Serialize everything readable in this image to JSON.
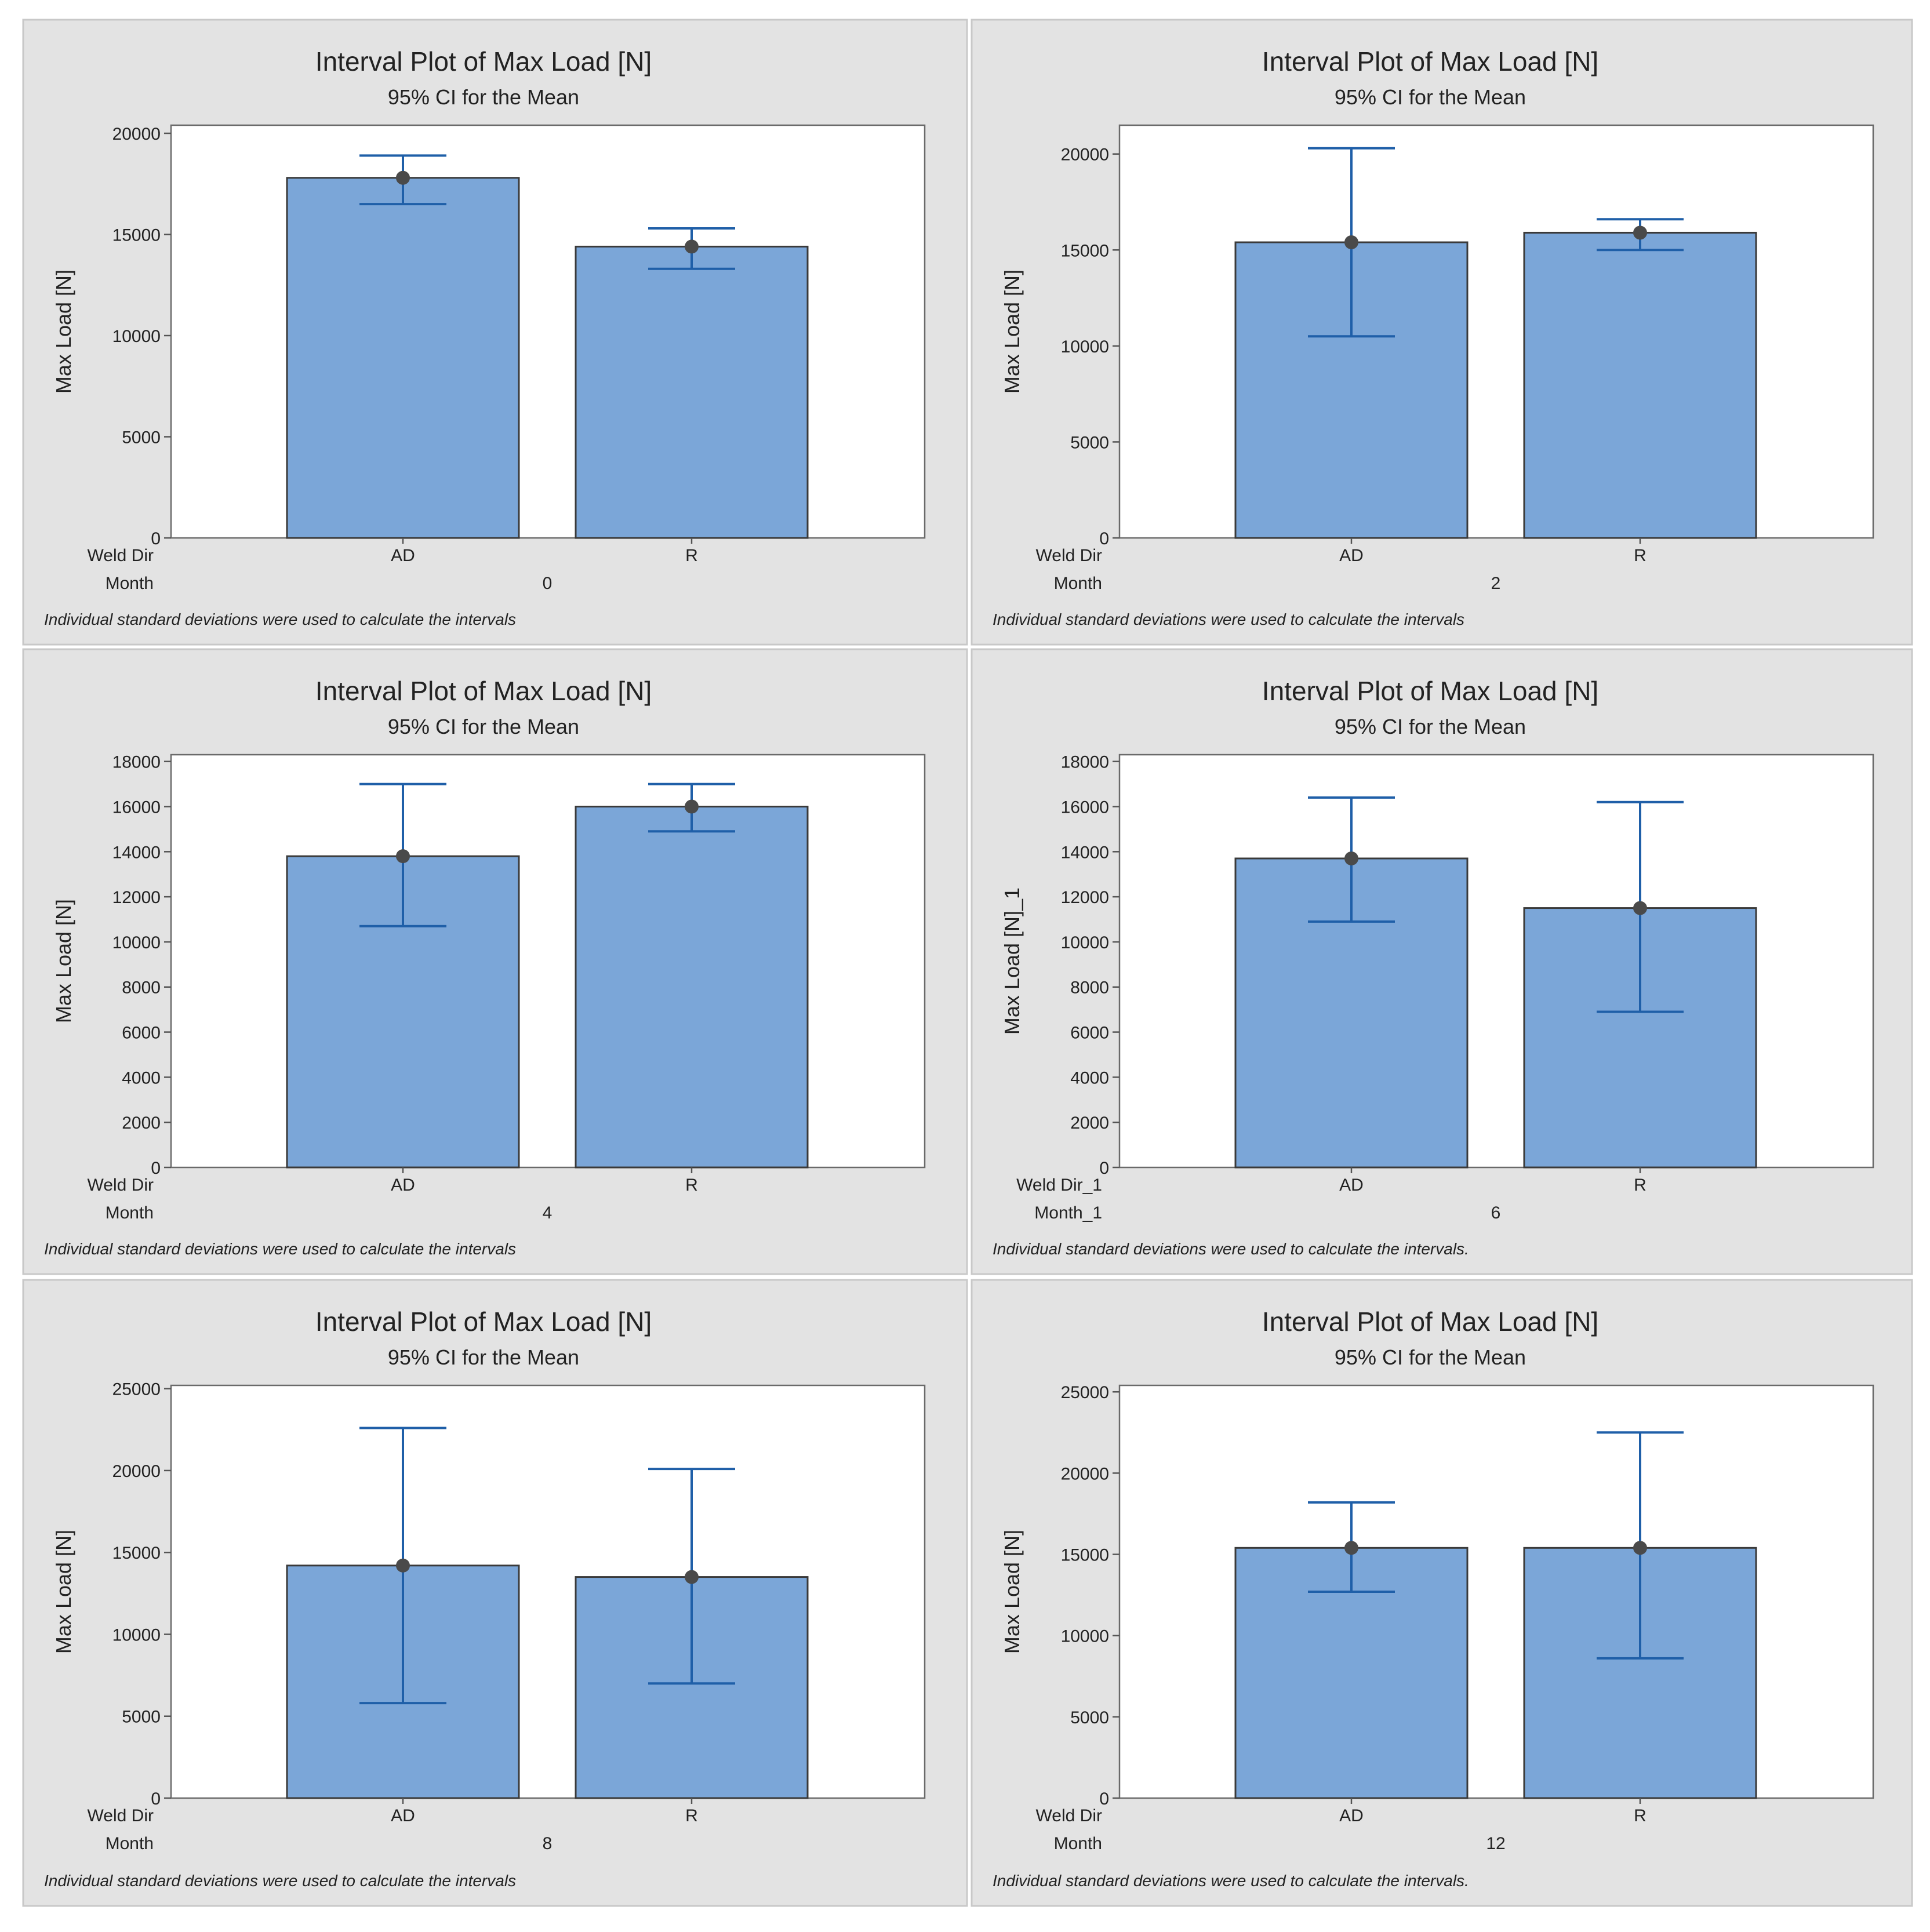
{
  "colors": {
    "panel_bg": "#e3e3e3",
    "panel_border": "#c8c8c8",
    "plot_bg": "#ffffff",
    "bar_fill": "#7ba6d8",
    "bar_stroke": "#3a3a3a",
    "ci_line": "#1f5fa8",
    "mean_dot": "#4a4a4a",
    "text": "#222222"
  },
  "chart_data": [
    {
      "type": "bar",
      "title": "Interval Plot of Max Load [N]",
      "subtitle": "95% CI for the Mean",
      "ylabel": "Max Load [N]",
      "ylim": [
        0,
        20400
      ],
      "yticks": [
        0,
        5000,
        10000,
        15000,
        20000
      ],
      "factor_labels": [
        "Weld Dir",
        "Month"
      ],
      "group_value": "0",
      "categories": [
        "AD",
        "R"
      ],
      "values": [
        17800,
        14400
      ],
      "ci_lower": [
        16500,
        13300
      ],
      "ci_upper": [
        18900,
        15300
      ],
      "footnote": "Individual standard deviations were used to calculate the intervals"
    },
    {
      "type": "bar",
      "title": "Interval Plot of Max Load [N]",
      "subtitle": "95% CI for the Mean",
      "ylabel": "Max Load [N]",
      "ylim": [
        0,
        21500
      ],
      "yticks": [
        0,
        5000,
        10000,
        15000,
        20000
      ],
      "factor_labels": [
        "Weld Dir",
        "Month"
      ],
      "group_value": "2",
      "categories": [
        "AD",
        "R"
      ],
      "values": [
        15400,
        15900
      ],
      "ci_lower": [
        10500,
        15000
      ],
      "ci_upper": [
        20300,
        16600
      ],
      "footnote": "Individual standard deviations were used to calculate the intervals"
    },
    {
      "type": "bar",
      "title": "Interval Plot of Max Load [N]",
      "subtitle": "95% CI for the Mean",
      "ylabel": "Max Load [N]",
      "ylim": [
        0,
        18300
      ],
      "yticks": [
        0,
        2000,
        4000,
        6000,
        8000,
        10000,
        12000,
        14000,
        16000,
        18000
      ],
      "factor_labels": [
        "Weld Dir",
        "Month"
      ],
      "group_value": "4",
      "categories": [
        "AD",
        "R"
      ],
      "values": [
        13800,
        16000
      ],
      "ci_lower": [
        10700,
        14900
      ],
      "ci_upper": [
        17000,
        17000
      ],
      "footnote": "Individual standard deviations were used to calculate the intervals"
    },
    {
      "type": "bar",
      "title": "Interval Plot of Max Load [N]",
      "subtitle": "95% CI for the Mean",
      "ylabel": "Max Load [N]_1",
      "ylim": [
        0,
        18300
      ],
      "yticks": [
        0,
        2000,
        4000,
        6000,
        8000,
        10000,
        12000,
        14000,
        16000,
        18000
      ],
      "factor_labels": [
        "Weld Dir_1",
        "Month_1"
      ],
      "group_value": "6",
      "categories": [
        "AD",
        "R"
      ],
      "values": [
        13700,
        11500
      ],
      "ci_lower": [
        10900,
        6900
      ],
      "ci_upper": [
        16400,
        16200
      ],
      "footnote": "Individual standard deviations were used to calculate the intervals."
    },
    {
      "type": "bar",
      "title": "Interval Plot of Max Load [N]",
      "subtitle": "95% CI for the Mean",
      "ylabel": "Max Load [N]",
      "ylim": [
        0,
        25200
      ],
      "yticks": [
        0,
        5000,
        10000,
        15000,
        20000,
        25000
      ],
      "factor_labels": [
        "Weld Dir",
        "Month"
      ],
      "group_value": "8",
      "categories": [
        "AD",
        "R"
      ],
      "values": [
        14200,
        13500
      ],
      "ci_lower": [
        5800,
        7000
      ],
      "ci_upper": [
        22600,
        20100
      ],
      "footnote": "Individual standard deviations were used to calculate the intervals"
    },
    {
      "type": "bar",
      "title": "Interval Plot of Max Load [N]",
      "subtitle": "95% CI for the Mean",
      "ylabel": "Max Load [N]",
      "ylim": [
        0,
        25400
      ],
      "yticks": [
        0,
        5000,
        10000,
        15000,
        20000,
        25000
      ],
      "factor_labels": [
        "Weld Dir",
        "Month"
      ],
      "group_value": "12",
      "categories": [
        "AD",
        "R"
      ],
      "values": [
        15400,
        15400
      ],
      "ci_lower": [
        12700,
        8600
      ],
      "ci_upper": [
        18200,
        22500
      ],
      "footnote": "Individual standard deviations were used to calculate the intervals."
    }
  ]
}
